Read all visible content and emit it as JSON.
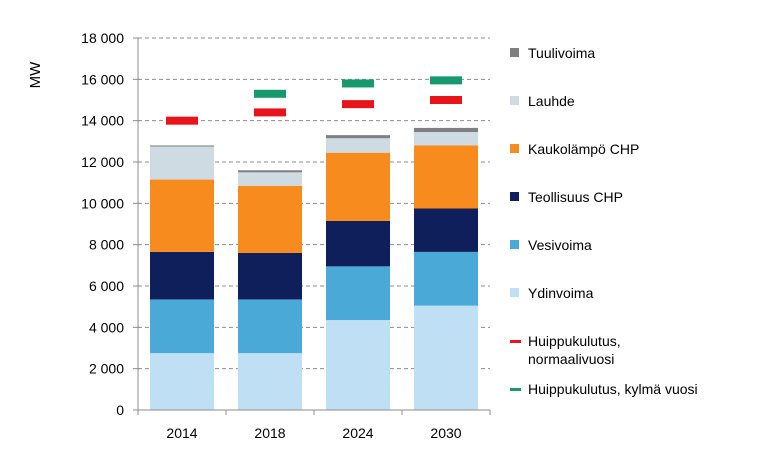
{
  "chart_data": {
    "type": "bar",
    "stacked": true,
    "ylabel": "MW",
    "ylim": [
      0,
      18000
    ],
    "ytick_step": 2000,
    "ytick_labels": [
      "0",
      "2 000",
      "4 000",
      "6 000",
      "8 000",
      "10 000",
      "12 000",
      "14 000",
      "16 000",
      "18 000"
    ],
    "categories": [
      "2014",
      "2018",
      "2024",
      "2030"
    ],
    "grid": true,
    "series": [
      {
        "name": "Ydinvoima",
        "color": "#bfe0f4",
        "values": [
          2750,
          2750,
          4350,
          5050
        ]
      },
      {
        "name": "Vesivoima",
        "color": "#4aa9d6",
        "values": [
          2600,
          2600,
          2600,
          2600
        ]
      },
      {
        "name": "Teollisuus CHP",
        "color": "#0e1f5b",
        "values": [
          2300,
          2250,
          2200,
          2100
        ]
      },
      {
        "name": "Kaukolämpö CHP",
        "color": "#f78b1e",
        "values": [
          3500,
          3250,
          3300,
          3050
        ]
      },
      {
        "name": "Lauhde",
        "color": "#cfdbe3",
        "values": [
          1600,
          650,
          700,
          650
        ]
      },
      {
        "name": "Tuulivoima",
        "color": "#7f7f7f",
        "values": [
          50,
          100,
          150,
          200
        ]
      }
    ],
    "markers": [
      {
        "name": "Huippukulutus, normaalivuosi",
        "color": "#e8131b",
        "values": [
          14000,
          14400,
          14800,
          15000
        ]
      },
      {
        "name": "Huippukulutus, kylmä vuosi",
        "color": "#169a6c",
        "values": [
          null,
          15300,
          15800,
          15950
        ]
      }
    ],
    "legend": [
      {
        "label": "Tuulivoima",
        "color": "#7f7f7f",
        "kind": "square"
      },
      {
        "label": "Lauhde",
        "color": "#cfdbe3",
        "kind": "square"
      },
      {
        "label": "Kaukolämpö CHP",
        "color": "#f78b1e",
        "kind": "square"
      },
      {
        "label": "Teollisuus CHP",
        "color": "#0e1f5b",
        "kind": "square"
      },
      {
        "label": "Vesivoima",
        "color": "#4aa9d6",
        "kind": "square"
      },
      {
        "label": "Ydinvoima",
        "color": "#bfe0f4",
        "kind": "square"
      },
      {
        "label": "Huippukulutus, normaalivuosi",
        "color": "#e8131b",
        "kind": "line"
      },
      {
        "label": "Huippukulutus, kylmä vuosi",
        "color": "#169a6c",
        "kind": "line"
      }
    ]
  }
}
